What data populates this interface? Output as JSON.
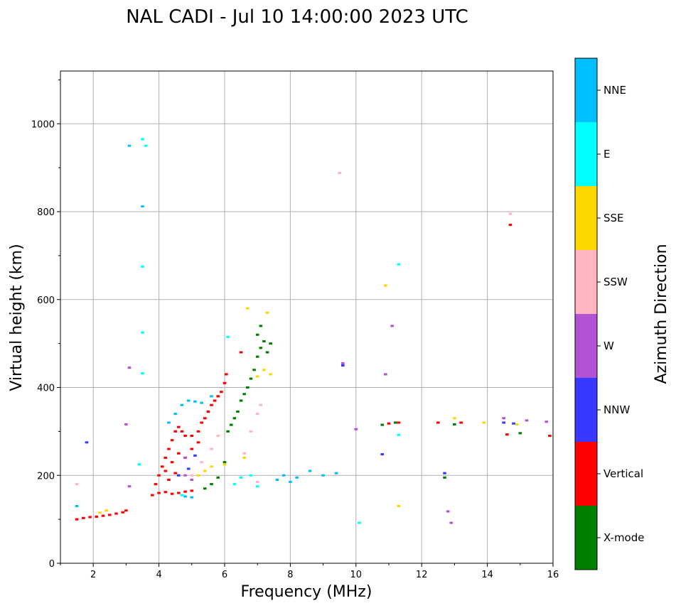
{
  "chart_data": {
    "type": "scatter",
    "title": "NAL CADI - Jul 10 14:00:00 2023 UTC",
    "xlabel": "Frequency (MHz)",
    "ylabel": "Virtual height (km)",
    "xlim": [
      1,
      16
    ],
    "ylim": [
      0,
      1120
    ],
    "xticks": [
      2,
      4,
      6,
      8,
      10,
      12,
      14,
      16
    ],
    "yticks": [
      0,
      200,
      400,
      600,
      800,
      1000
    ],
    "grid": true,
    "colorbar": {
      "label": "Azimuth Direction",
      "categories": [
        {
          "name": "X-mode",
          "color": "#008000"
        },
        {
          "name": "Vertical",
          "color": "#ff0000"
        },
        {
          "name": "NNW",
          "color": "#3838ff"
        },
        {
          "name": "W",
          "color": "#b452d6"
        },
        {
          "name": "SSW",
          "color": "#ffb6c1"
        },
        {
          "name": "SSE",
          "color": "#ffd700"
        },
        {
          "name": "E",
          "color": "#00ffff"
        },
        {
          "name": "NNE",
          "color": "#00bfff"
        }
      ]
    },
    "series": [
      {
        "name": "Vertical",
        "points": [
          [
            1.5,
            100
          ],
          [
            1.7,
            103
          ],
          [
            1.9,
            105
          ],
          [
            2.1,
            106
          ],
          [
            2.3,
            108
          ],
          [
            2.5,
            110
          ],
          [
            2.7,
            113
          ],
          [
            2.9,
            116
          ],
          [
            3.0,
            120
          ],
          [
            3.8,
            155
          ],
          [
            4.0,
            160
          ],
          [
            4.2,
            162
          ],
          [
            4.4,
            158
          ],
          [
            4.6,
            160
          ],
          [
            4.8,
            163
          ],
          [
            5.0,
            165
          ],
          [
            3.9,
            180
          ],
          [
            4.0,
            200
          ],
          [
            4.1,
            220
          ],
          [
            4.2,
            240
          ],
          [
            4.3,
            260
          ],
          [
            4.4,
            280
          ],
          [
            4.5,
            300
          ],
          [
            4.6,
            310
          ],
          [
            4.7,
            300
          ],
          [
            4.8,
            290
          ],
          [
            5.0,
            290
          ],
          [
            5.2,
            300
          ],
          [
            5.3,
            320
          ],
          [
            5.4,
            330
          ],
          [
            5.5,
            345
          ],
          [
            5.6,
            360
          ],
          [
            5.7,
            370
          ],
          [
            5.8,
            380
          ],
          [
            5.9,
            390
          ],
          [
            6.0,
            410
          ],
          [
            6.05,
            430
          ],
          [
            4.2,
            210
          ],
          [
            4.4,
            230
          ],
          [
            4.6,
            250
          ],
          [
            4.8,
            240
          ],
          [
            5.0,
            260
          ],
          [
            5.2,
            275
          ],
          [
            4.3,
            190
          ],
          [
            4.5,
            205
          ],
          [
            6.5,
            480
          ],
          [
            11.0,
            318
          ],
          [
            11.3,
            320
          ],
          [
            12.5,
            320
          ],
          [
            13.2,
            320
          ],
          [
            14.6,
            293
          ],
          [
            14.7,
            770
          ],
          [
            15.9,
            290
          ]
        ]
      },
      {
        "name": "X-mode",
        "points": [
          [
            5.4,
            170
          ],
          [
            5.6,
            180
          ],
          [
            5.8,
            195
          ],
          [
            6.0,
            230
          ],
          [
            6.1,
            300
          ],
          [
            6.2,
            315
          ],
          [
            6.3,
            330
          ],
          [
            6.4,
            345
          ],
          [
            6.5,
            370
          ],
          [
            6.6,
            385
          ],
          [
            6.7,
            400
          ],
          [
            6.8,
            420
          ],
          [
            6.9,
            440
          ],
          [
            7.0,
            470
          ],
          [
            7.1,
            490
          ],
          [
            7.2,
            505
          ],
          [
            7.0,
            520
          ],
          [
            7.1,
            540
          ],
          [
            7.3,
            480
          ],
          [
            7.4,
            500
          ],
          [
            10.8,
            315
          ],
          [
            11.2,
            320
          ],
          [
            13.0,
            316
          ],
          [
            12.7,
            195
          ],
          [
            15.0,
            296
          ]
        ]
      },
      {
        "name": "NNE",
        "points": [
          [
            4.3,
            320
          ],
          [
            4.5,
            340
          ],
          [
            4.7,
            360
          ],
          [
            4.9,
            370
          ],
          [
            5.1,
            368
          ],
          [
            5.3,
            365
          ],
          [
            5.6,
            380
          ],
          [
            7.6,
            190
          ],
          [
            7.8,
            200
          ],
          [
            8.0,
            185
          ],
          [
            8.2,
            195
          ],
          [
            8.6,
            210
          ],
          [
            9.0,
            200
          ],
          [
            9.4,
            205
          ],
          [
            3.5,
            812
          ],
          [
            1.5,
            130
          ],
          [
            3.1,
            950
          ],
          [
            5.0,
            150
          ],
          [
            4.8,
            152
          ]
        ]
      },
      {
        "name": "E",
        "points": [
          [
            6.3,
            180
          ],
          [
            6.5,
            195
          ],
          [
            6.8,
            200
          ],
          [
            7.0,
            175
          ],
          [
            3.5,
            675
          ],
          [
            3.5,
            525
          ],
          [
            3.5,
            432
          ],
          [
            11.3,
            680
          ],
          [
            11.3,
            292
          ],
          [
            10.1,
            92
          ],
          [
            4.7,
            155
          ],
          [
            6.1,
            515
          ],
          [
            3.6,
            950
          ],
          [
            3.5,
            965
          ],
          [
            3.4,
            225
          ]
        ]
      },
      {
        "name": "SSE",
        "points": [
          [
            2.2,
            115
          ],
          [
            2.4,
            120
          ],
          [
            5.2,
            200
          ],
          [
            5.4,
            210
          ],
          [
            5.6,
            220
          ],
          [
            6.0,
            225
          ],
          [
            6.6,
            240
          ],
          [
            7.0,
            425
          ],
          [
            7.2,
            440
          ],
          [
            7.4,
            430
          ],
          [
            10.9,
            632
          ],
          [
            11.3,
            130
          ],
          [
            13.0,
            330
          ],
          [
            13.9,
            320
          ],
          [
            14.9,
            316
          ],
          [
            6.7,
            580
          ],
          [
            7.3,
            570
          ]
        ]
      },
      {
        "name": "SSW",
        "points": [
          [
            5.0,
            200
          ],
          [
            5.3,
            230
          ],
          [
            5.6,
            260
          ],
          [
            6.6,
            250
          ],
          [
            6.8,
            300
          ],
          [
            7.0,
            340
          ],
          [
            7.1,
            360
          ],
          [
            9.5,
            888
          ],
          [
            14.7,
            795
          ],
          [
            5.8,
            290
          ],
          [
            1.5,
            180
          ],
          [
            7.0,
            185
          ]
        ]
      },
      {
        "name": "W",
        "points": [
          [
            4.8,
            200
          ],
          [
            5.0,
            190
          ],
          [
            3.0,
            316
          ],
          [
            3.1,
            175
          ],
          [
            3.1,
            445
          ],
          [
            10.0,
            305
          ],
          [
            10.9,
            430
          ],
          [
            11.1,
            540
          ],
          [
            12.8,
            118
          ],
          [
            12.9,
            92
          ],
          [
            14.5,
            330
          ],
          [
            15.2,
            325
          ],
          [
            15.8,
            322
          ],
          [
            4.8,
            240
          ],
          [
            9.6,
            455
          ]
        ]
      },
      {
        "name": "NNW",
        "points": [
          [
            4.6,
            200
          ],
          [
            4.9,
            215
          ],
          [
            5.1,
            245
          ],
          [
            10.8,
            248
          ],
          [
            12.7,
            205
          ],
          [
            14.5,
            320
          ],
          [
            14.8,
            318
          ],
          [
            9.6,
            450
          ],
          [
            1.8,
            275
          ]
        ]
      }
    ]
  }
}
